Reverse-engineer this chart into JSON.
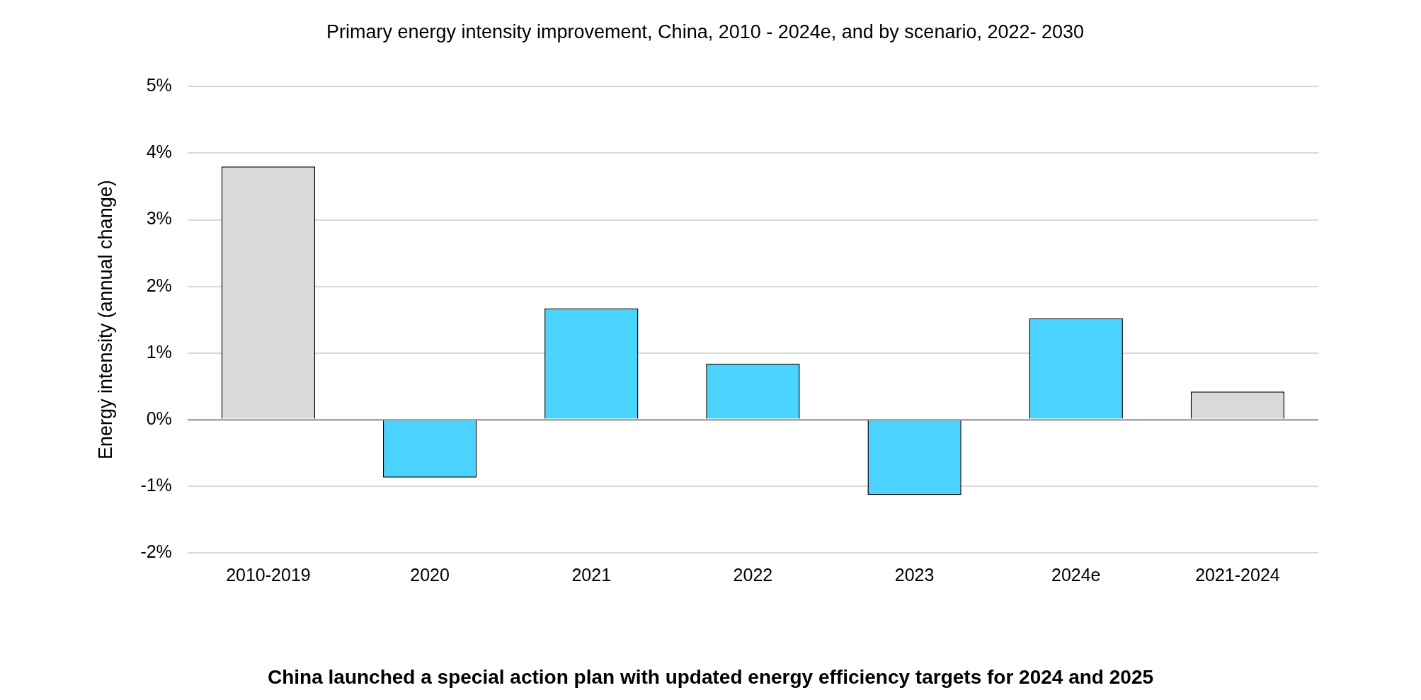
{
  "chart_data": {
    "type": "bar",
    "title": "Primary energy intensity improvement, China, 2010 - 2024e, and by scenario, 2022- 2030",
    "ylabel": "Energy intensity (annual change)",
    "categories": [
      "2010-2019",
      "2020",
      "2021",
      "2022",
      "2023",
      "2024e",
      "2021-2024"
    ],
    "values": [
      3.8,
      -0.87,
      1.67,
      0.84,
      -1.13,
      1.52,
      0.42
    ],
    "colors": [
      "#d9d9d9",
      "#4bd3ff",
      "#4bd3ff",
      "#4bd3ff",
      "#4bd3ff",
      "#4bd3ff",
      "#d9d9d9"
    ],
    "ylim": [
      -2,
      5
    ],
    "yticks": [
      {
        "value": -2,
        "label": "-2%"
      },
      {
        "value": -1,
        "label": "-1%"
      },
      {
        "value": 0,
        "label": "0%"
      },
      {
        "value": 1,
        "label": "1%"
      },
      {
        "value": 2,
        "label": "2%"
      },
      {
        "value": 3,
        "label": "3%"
      },
      {
        "value": 4,
        "label": "4%"
      },
      {
        "value": 5,
        "label": "5%"
      }
    ],
    "grid": "y",
    "legend": false,
    "annotations": [
      "China launched a special action plan with updated energy efficiency targets for 2024 and 2025"
    ]
  }
}
